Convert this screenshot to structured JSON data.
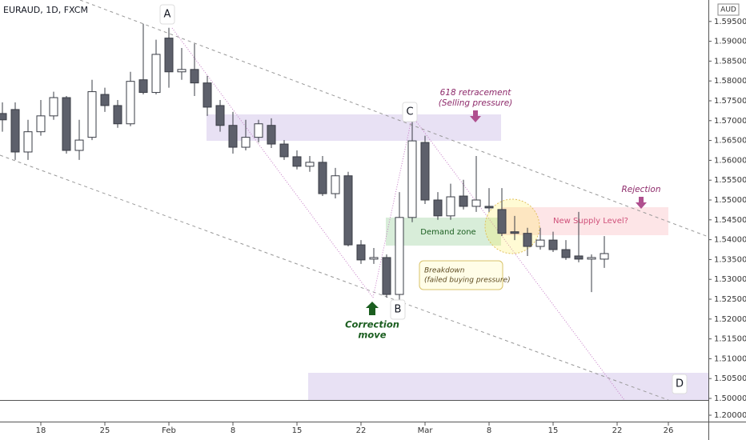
{
  "chart_data": {
    "type": "candlestick",
    "title": "EURAUD, 1D, FXCM",
    "currency": "AUD",
    "categories": [
      null,
      null,
      null,
      "18",
      null,
      null,
      null,
      null,
      "25",
      null,
      null,
      null,
      null,
      "Feb",
      null,
      null,
      null,
      null,
      "8",
      null,
      null,
      null,
      null,
      "15",
      null,
      null,
      null,
      null,
      "22",
      null,
      null,
      null,
      null,
      "Mar",
      null,
      null,
      null,
      null,
      "8",
      null,
      null,
      null,
      null,
      "15",
      null,
      null,
      null,
      null,
      "22",
      null,
      null,
      null,
      "26"
    ],
    "open": [
      1.5718,
      1.5728,
      1.5621,
      1.5672,
      1.5712,
      1.5758,
      1.5625,
      1.5658,
      1.5766,
      1.5738,
      1.5692,
      1.5803,
      1.5771,
      1.5908,
      1.5823,
      1.5829,
      1.5795,
      1.5738,
      1.5688,
      1.5633,
      1.5658,
      1.5688,
      1.5641,
      1.5609,
      1.5585,
      1.5595,
      1.5516,
      1.5561,
      1.5387,
      1.5351,
      1.5355,
      1.5262,
      1.5456,
      1.5645,
      1.55,
      1.546,
      1.551,
      1.5484,
      1.5484,
      1.5476,
      1.542,
      1.5416,
      1.5383,
      1.5399,
      1.5375,
      1.5359,
      1.5351,
      1.5351,
      null,
      null,
      null,
      null,
      null
    ],
    "high": [
      1.5746,
      1.5746,
      1.5702,
      1.5752,
      1.5773,
      1.5762,
      1.5702,
      1.5803,
      1.5783,
      1.5752,
      1.5823,
      1.5944,
      1.5904,
      1.5934,
      1.5883,
      1.5894,
      1.5813,
      1.5752,
      1.5722,
      1.5702,
      1.5702,
      1.5706,
      1.5651,
      1.5625,
      1.5611,
      1.5611,
      1.5581,
      1.5571,
      1.5399,
      1.5379,
      1.5363,
      1.552,
      1.5702,
      1.5662,
      1.552,
      1.5541,
      1.5551,
      1.5611,
      1.553,
      1.553,
      1.546,
      1.543,
      1.543,
      1.542,
      1.5399,
      1.547,
      1.5363,
      1.5409,
      null,
      null,
      null,
      null,
      null
    ],
    "low": [
      1.5672,
      1.5601,
      1.5601,
      1.5662,
      1.5702,
      1.5617,
      1.5601,
      1.5651,
      1.5722,
      1.5682,
      1.5686,
      1.5766,
      1.5766,
      1.5783,
      1.5803,
      1.5762,
      1.5712,
      1.5672,
      1.5617,
      1.5625,
      1.5645,
      1.5631,
      1.5601,
      1.5577,
      1.5571,
      1.551,
      1.5504,
      1.5383,
      1.5339,
      1.5339,
      1.5254,
      1.5248,
      1.5444,
      1.549,
      1.545,
      1.545,
      1.5476,
      1.547,
      1.547,
      1.5409,
      1.5399,
      1.5359,
      1.5375,
      1.5369,
      1.5349,
      1.5343,
      1.5268,
      1.5329,
      null,
      null,
      null,
      null,
      null
    ],
    "close": [
      1.5702,
      1.5621,
      1.5672,
      1.5712,
      1.5758,
      1.5625,
      1.5651,
      1.5773,
      1.5738,
      1.5692,
      1.5799,
      1.5771,
      1.5867,
      1.5823,
      1.5829,
      1.5795,
      1.5734,
      1.5688,
      1.5633,
      1.5658,
      1.5692,
      1.5641,
      1.5609,
      1.5585,
      1.5595,
      1.5516,
      1.5561,
      1.5387,
      1.5349,
      1.5355,
      1.5262,
      1.5456,
      1.5649,
      1.55,
      1.546,
      1.5508,
      1.5484,
      1.55,
      1.548,
      1.5416,
      1.5416,
      1.5383,
      1.5399,
      1.5375,
      1.5355,
      1.5351,
      1.5355,
      1.5365,
      null,
      null,
      null,
      null,
      null
    ],
    "up_color": "#ffffff",
    "down_color": "#5d606b",
    "ylim": [
      1.4996,
      1.6004
    ],
    "yticks": [
      {
        "value": 1.5,
        "label": "1.50000"
      },
      {
        "value": 1.505,
        "label": "1.50500"
      },
      {
        "value": 1.51,
        "label": "1.51000"
      },
      {
        "value": 1.515,
        "label": "1.51500"
      },
      {
        "value": 1.52,
        "label": "1.52000"
      },
      {
        "value": 1.525,
        "label": "1.52500"
      },
      {
        "value": 1.53,
        "label": "1.53000"
      },
      {
        "value": 1.535,
        "label": "1.53500"
      },
      {
        "value": 1.54,
        "label": "1.54000"
      },
      {
        "value": 1.545,
        "label": "1.54500"
      },
      {
        "value": 1.55,
        "label": "1.55000"
      },
      {
        "value": 1.555,
        "label": "1.55500"
      },
      {
        "value": 1.56,
        "label": "1.56000"
      },
      {
        "value": 1.565,
        "label": "1.56500"
      },
      {
        "value": 1.57,
        "label": "1.57000"
      },
      {
        "value": 1.575,
        "label": "1.57500"
      },
      {
        "value": 1.58,
        "label": "1.58000"
      },
      {
        "value": 1.585,
        "label": "1.58500"
      },
      {
        "value": 1.59,
        "label": "1.59000"
      },
      {
        "value": 1.595,
        "label": "1.59500"
      }
    ],
    "secondary_ytick": {
      "value": 1.2,
      "label": "1.20000"
    },
    "annotations": [
      "A",
      "B",
      "C",
      "D",
      "618 retracement",
      "(Selling pressure)",
      "Rejection",
      "New Supply Level?",
      "Demand zone",
      "Breakdown",
      "(failed buying pressure)",
      "Correction",
      "move"
    ]
  }
}
